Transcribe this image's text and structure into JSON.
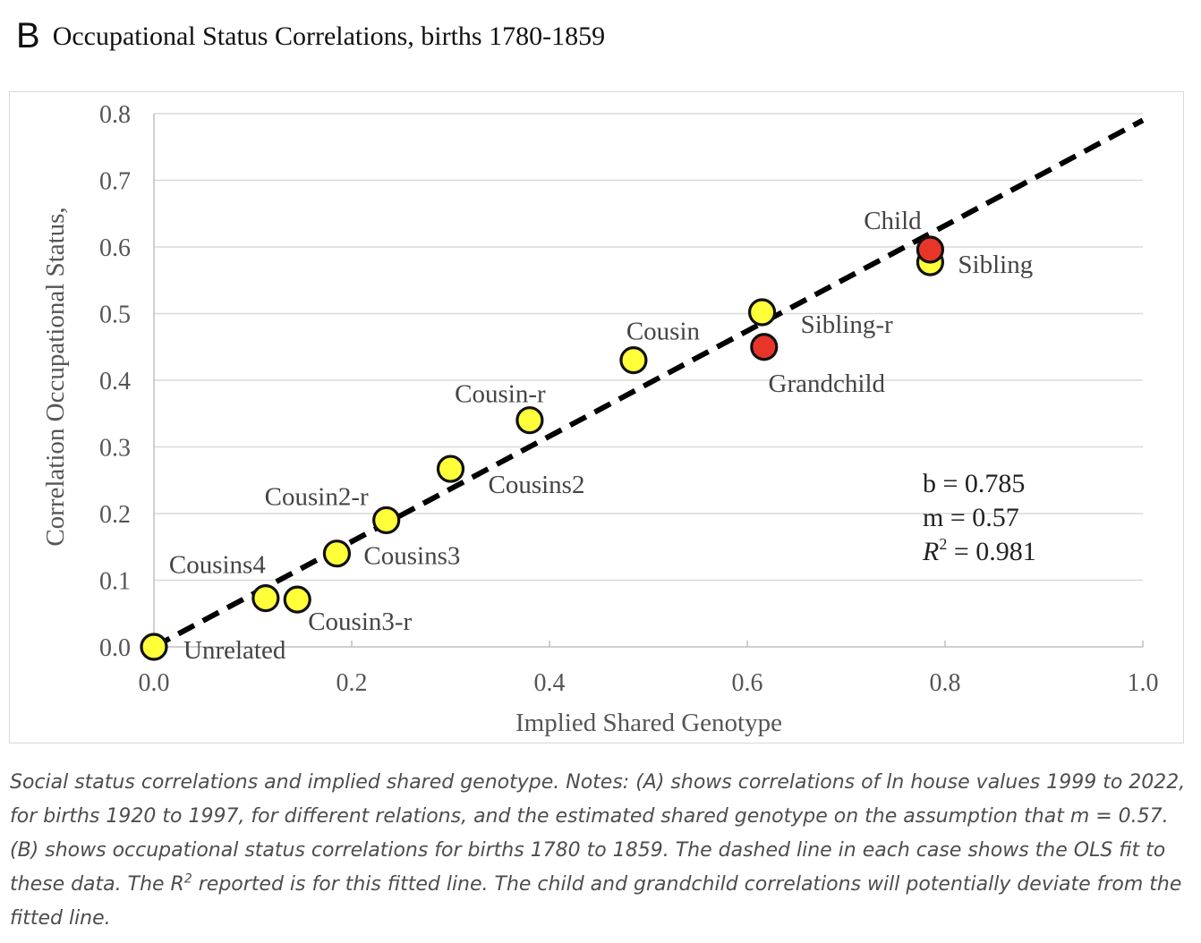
{
  "panel": {
    "letter": "B",
    "title": "Occupational Status Correlations, births 1780-1859"
  },
  "chart_data": {
    "type": "scatter",
    "xlabel": "Implied Shared Genotype",
    "ylabel": "Correlation Occupational Status,",
    "xlim": [
      0.0,
      1.0
    ],
    "ylim": [
      0.0,
      0.8
    ],
    "xticks": [
      "0.0",
      "0.2",
      "0.4",
      "0.6",
      "0.8",
      "1.0"
    ],
    "yticks": [
      "0.0",
      "0.1",
      "0.2",
      "0.3",
      "0.4",
      "0.5",
      "0.6",
      "0.7",
      "0.8"
    ],
    "grid": true,
    "colors": {
      "point": "#ffff3a",
      "highlight": "#e8352a",
      "stroke": "#111111",
      "fit_line": "#000000",
      "grid": "#d9d9d9"
    },
    "points": [
      {
        "label": "Unrelated",
        "x": 0.0,
        "y": 0.0,
        "highlight": false
      },
      {
        "label": "Cousins4",
        "x": 0.113,
        "y": 0.073,
        "highlight": false
      },
      {
        "label": "Cousin3-r",
        "x": 0.145,
        "y": 0.071,
        "highlight": false
      },
      {
        "label": "Cousins3",
        "x": 0.185,
        "y": 0.14,
        "highlight": false
      },
      {
        "label": "Cousin2-r",
        "x": 0.235,
        "y": 0.19,
        "highlight": false
      },
      {
        "label": "Cousins2",
        "x": 0.3,
        "y": 0.267,
        "highlight": false
      },
      {
        "label": "Cousin-r",
        "x": 0.38,
        "y": 0.34,
        "highlight": false
      },
      {
        "label": "Cousin",
        "x": 0.485,
        "y": 0.43,
        "highlight": false
      },
      {
        "label": "Sibling-r",
        "x": 0.615,
        "y": 0.502,
        "highlight": false
      },
      {
        "label": "Grandchild",
        "x": 0.617,
        "y": 0.45,
        "highlight": true
      },
      {
        "label": "Sibling",
        "x": 0.785,
        "y": 0.577,
        "highlight": false
      },
      {
        "label": "Child",
        "x": 0.785,
        "y": 0.596,
        "highlight": true
      }
    ],
    "fit_line": {
      "style": "dashed",
      "x": [
        0.0,
        1.0
      ],
      "y": [
        0.0,
        0.79
      ]
    },
    "annotation": {
      "b": "b = 0.785",
      "m": "m = 0.57",
      "r2_symbol": "R",
      "r2_exp": "2",
      "r2_value": " = 0.981"
    }
  },
  "caption": {
    "part1": "Social status correlations and implied shared genotype. Notes: (A) shows correlations of ln house values 1999 to 2022, for births 1920 to 1997, for different relations, and the estimated shared genotype on the assumption that m = 0.57. (B) shows occupational status correlations for births 1780 to 1859. The dashed line in each case shows the OLS fit to these data. The R",
    "sup": "2",
    "part2": " reported is for this fitted line. The child and grandchild correlations will potentially deviate from the fitted line."
  }
}
